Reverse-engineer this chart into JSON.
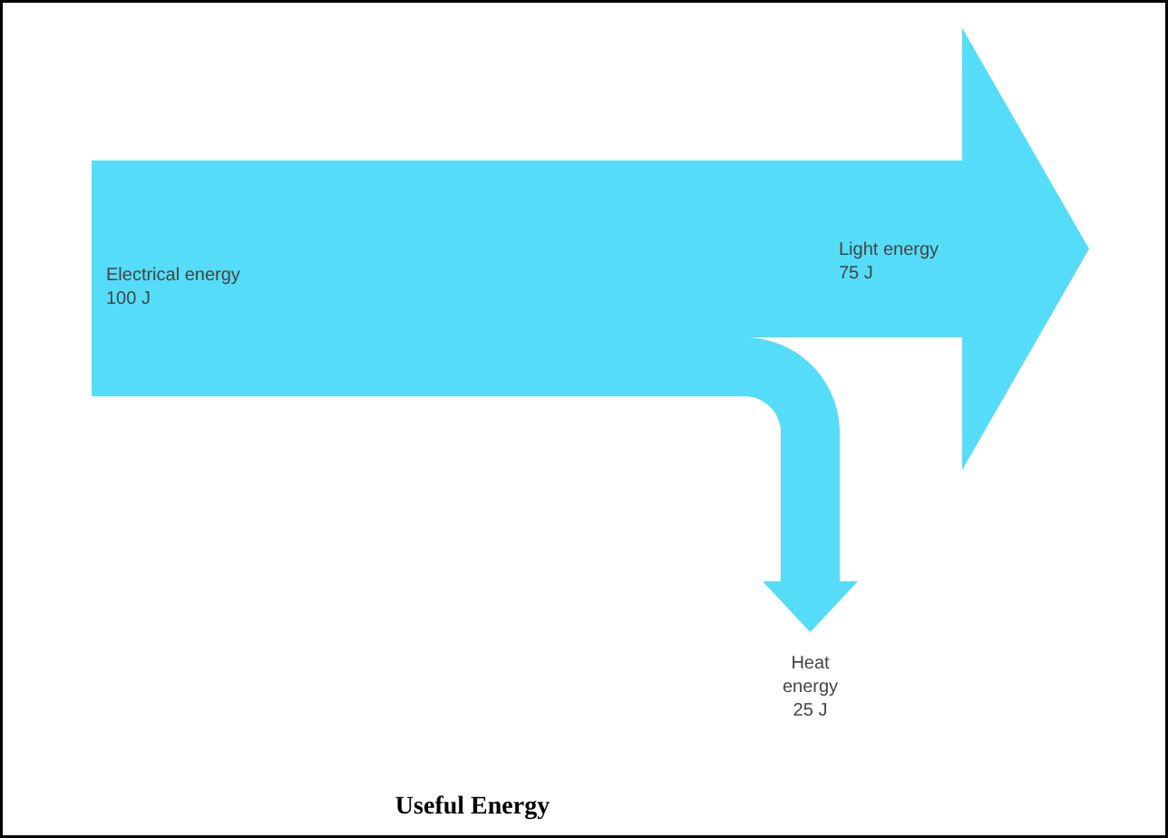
{
  "chart_data": {
    "type": "other",
    "categories": [
      "Electrical energy",
      "Light energy",
      "Heat energy"
    ],
    "values": [
      100,
      75,
      25
    ],
    "value_labels": [
      "100 J",
      "75 J",
      "25 J"
    ],
    "colors": [
      "#55dcf9",
      "#55dcf9",
      "#55dcf9"
    ],
    "annotations": [
      "Useful Energy"
    ]
  }
}
